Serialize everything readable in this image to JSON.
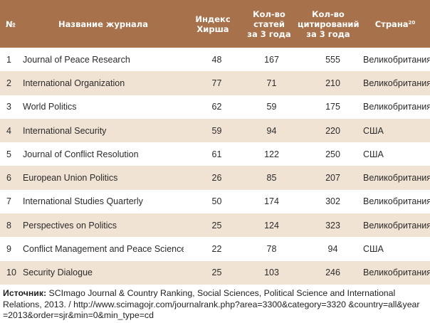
{
  "table": {
    "headers": {
      "num": "№",
      "name": "Название журнала",
      "hirsch": [
        "Индекс",
        "Хирша"
      ],
      "articles": [
        "Кол-во",
        "статей",
        "за 3 года"
      ],
      "citations": [
        "Кол-во",
        "цитирований",
        "за 3 года"
      ],
      "country": "Страна",
      "country_footnote": "20"
    },
    "rows": [
      {
        "num": "1",
        "name": "Journal of Peace Research",
        "hirsch": "48",
        "articles": "167",
        "citations": "555",
        "country": "Великобритания"
      },
      {
        "num": "2",
        "name": "International Organization",
        "hirsch": "77",
        "articles": "71",
        "citations": "210",
        "country": "Великобритания"
      },
      {
        "num": "3",
        "name": "World Politics",
        "hirsch": "62",
        "articles": "59",
        "citations": "175",
        "country": "Великобритания"
      },
      {
        "num": "4",
        "name": "International Security",
        "hirsch": "59",
        "articles": "94",
        "citations": "220",
        "country": "США"
      },
      {
        "num": "5",
        "name": "Journal of Conflict Resolution",
        "hirsch": "61",
        "articles": "122",
        "citations": "250",
        "country": "США"
      },
      {
        "num": "6",
        "name": "European Union Politics",
        "hirsch": "26",
        "articles": "85",
        "citations": "207",
        "country": "Великобритания"
      },
      {
        "num": "7",
        "name": "International Studies Quarterly",
        "hirsch": "50",
        "articles": "174",
        "citations": "302",
        "country": "Великобритания"
      },
      {
        "num": "8",
        "name": "Perspectives on Politics",
        "hirsch": "25",
        "articles": "124",
        "citations": "323",
        "country": "Великобритания"
      },
      {
        "num": "9",
        "name": "Conflict Management and Peace Science",
        "hirsch": "22",
        "articles": "78",
        "citations": "94",
        "country": "США"
      },
      {
        "num": "10",
        "name": "Security Dialogue",
        "hirsch": "25",
        "articles": "103",
        "citations": "246",
        "country": "Великобритания"
      }
    ]
  },
  "source": {
    "label": "Источник:",
    "text": " SCImago Journal & Country Ranking, Social Sciences, Political Science and International Relations, 2013. / http://www.scimagojr.com/journalrank.php?area=3300&category=3320 &country=all&year =2013&order=sjr&min=0&min_type=cd"
  },
  "colors": {
    "header_bg": "#a6714b",
    "stripe_bg": "#f1e3d3",
    "header_text": "#ffffff"
  }
}
